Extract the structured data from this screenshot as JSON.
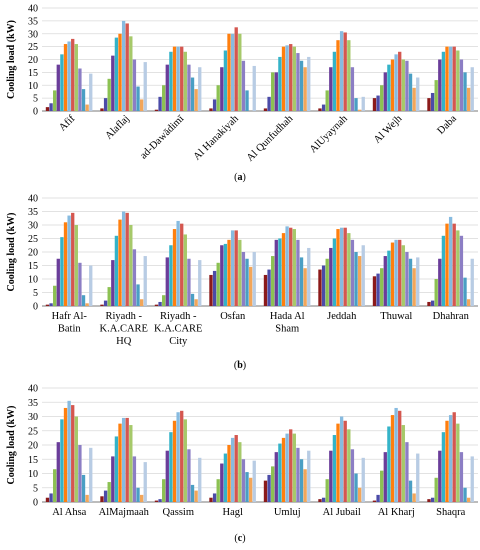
{
  "colors": [
    "#8b1a1a",
    "#4b4ba8",
    "#8cc152",
    "#6a3d9a",
    "#34b3c8",
    "#ff7f0e",
    "#87bbe0",
    "#d4574f",
    "#a6c96a",
    "#8c7ec4",
    "#4a9fc4",
    "#f2a65a",
    "#b8cce4"
  ],
  "chart_data": [
    {
      "type": "bar",
      "panel_label": "a",
      "ylabel": "Cooling load (kW)",
      "ylim": [
        0,
        40
      ],
      "yticks": [
        0,
        5,
        10,
        15,
        20,
        25,
        30,
        35,
        40
      ],
      "grid": true,
      "categories": [
        "Afif",
        "Alaflaj",
        "ad-Dawādimī",
        "Al Hanakiyah",
        "Al Qunfudhah",
        "AlUyaynah",
        "Al Wejh",
        "Daba"
      ],
      "series": [
        {
          "values": [
            1.5,
            1,
            0.5,
            1,
            1,
            1,
            5,
            5
          ]
        },
        {
          "values": [
            3,
            5,
            5.5,
            4.5,
            5.5,
            2.5,
            6,
            7
          ]
        },
        {
          "values": [
            8,
            12.5,
            10,
            10,
            15,
            8,
            10,
            12
          ]
        },
        {
          "values": [
            18,
            21.5,
            18,
            17,
            15,
            17,
            15,
            20
          ]
        },
        {
          "values": [
            22,
            28.5,
            23,
            23.5,
            21,
            23,
            18,
            23
          ]
        },
        {
          "values": [
            26,
            30,
            25,
            30,
            25,
            27.5,
            20,
            25
          ]
        },
        {
          "values": [
            27,
            35,
            25,
            30,
            25.5,
            31,
            22,
            25
          ]
        },
        {
          "values": [
            28,
            34,
            25,
            32.5,
            26,
            30.5,
            23,
            25
          ]
        },
        {
          "values": [
            26,
            29,
            23,
            30,
            25,
            27.5,
            20,
            23.5
          ]
        },
        {
          "values": [
            16.5,
            20,
            18,
            19.5,
            22.5,
            17,
            19.5,
            20
          ]
        },
        {
          "values": [
            8.5,
            9.5,
            13,
            8,
            19.5,
            5,
            14.5,
            15
          ]
        },
        {
          "values": [
            2.5,
            4.5,
            8.5,
            0,
            17,
            0.5,
            9,
            9
          ]
        },
        {
          "values": [
            14.5,
            19,
            17,
            17.5,
            21,
            5.5,
            13,
            17
          ]
        }
      ]
    },
    {
      "type": "bar",
      "panel_label": "b",
      "ylabel": "Cooling load (kW)",
      "ylim": [
        0,
        40
      ],
      "yticks": [
        0,
        5,
        10,
        15,
        20,
        25,
        30,
        35,
        40
      ],
      "grid": true,
      "categories": [
        "Hafr Al-\nBatin",
        "Riyadh -\nK.A.CARE\nHQ",
        "Riyadh -\nK.A.CARE\nCity",
        "Osfan",
        "Hada Al\nSham",
        "Jeddah",
        "Thuwal",
        "Dhahran"
      ],
      "series": [
        {
          "values": [
            0.5,
            0.5,
            0.5,
            11.5,
            11.5,
            13.5,
            11,
            1.5
          ]
        },
        {
          "values": [
            1,
            2,
            1.5,
            13,
            13.5,
            15,
            12,
            2
          ]
        },
        {
          "values": [
            7.5,
            7,
            4,
            16,
            18.5,
            17.5,
            14,
            10
          ]
        },
        {
          "values": [
            17.5,
            17,
            18,
            22.5,
            24.5,
            21.5,
            18.5,
            17.5
          ]
        },
        {
          "values": [
            25.5,
            26,
            22.5,
            23,
            25,
            25,
            20.5,
            26
          ]
        },
        {
          "values": [
            31,
            32,
            28.5,
            24.5,
            27,
            28.5,
            23.5,
            30.5
          ]
        },
        {
          "values": [
            33.5,
            35,
            31.5,
            28,
            29.5,
            29,
            24.5,
            33
          ]
        },
        {
          "values": [
            34.5,
            34.5,
            30.5,
            28,
            29,
            29,
            24.5,
            30.5
          ]
        },
        {
          "values": [
            30,
            30,
            26.5,
            24.5,
            28.5,
            27,
            22.5,
            28
          ]
        },
        {
          "values": [
            16,
            21,
            17.5,
            20,
            24.5,
            24.5,
            20,
            26
          ]
        },
        {
          "values": [
            4,
            8,
            4.5,
            17.5,
            18,
            20,
            17.5,
            10.5
          ]
        },
        {
          "values": [
            1,
            2.5,
            2.5,
            14.5,
            14,
            18.5,
            14,
            2.5
          ]
        },
        {
          "values": [
            15,
            18.5,
            17,
            20,
            21.5,
            22.5,
            18,
            17.5
          ]
        }
      ]
    },
    {
      "type": "bar",
      "panel_label": "c",
      "ylabel": "Cooling load (kW)",
      "ylim": [
        0,
        40
      ],
      "yticks": [
        0,
        5,
        10,
        15,
        20,
        25,
        30,
        35,
        40
      ],
      "grid": true,
      "categories": [
        "Al Ahsa",
        "AlMajmaah",
        "Qassim",
        "Hagl",
        "Umluj",
        "Al Jubail",
        "Al Kharj",
        "Shaqra"
      ],
      "series": [
        {
          "values": [
            1.5,
            2,
            0.5,
            1.5,
            7.5,
            1,
            0.5,
            1
          ]
        },
        {
          "values": [
            3,
            4,
            1,
            3,
            9.5,
            1.5,
            2.5,
            1.5
          ]
        },
        {
          "values": [
            11.5,
            7,
            8,
            8,
            12.5,
            8,
            11,
            8.5
          ]
        },
        {
          "values": [
            21,
            16,
            18,
            13.5,
            17.5,
            18,
            17.5,
            18
          ]
        },
        {
          "values": [
            29,
            23,
            24.5,
            17,
            20.5,
            23.5,
            26.5,
            24.5
          ]
        },
        {
          "values": [
            33,
            27.5,
            28.5,
            20,
            22.5,
            27.5,
            30.5,
            28.5
          ]
        },
        {
          "values": [
            35.5,
            29.5,
            31.5,
            22.5,
            24,
            30,
            33,
            30.5
          ]
        },
        {
          "values": [
            34,
            29.5,
            32,
            23.5,
            25.5,
            28.5,
            32,
            31.5
          ]
        },
        {
          "values": [
            30,
            27,
            29,
            21,
            24,
            25.5,
            27,
            27.5
          ]
        },
        {
          "values": [
            20,
            16,
            18.5,
            15,
            19,
            18.5,
            21,
            17.5
          ]
        },
        {
          "values": [
            9.5,
            5,
            6,
            10.5,
            15,
            10,
            7.5,
            5
          ]
        },
        {
          "values": [
            2.5,
            2.5,
            4,
            8.5,
            11.5,
            5,
            3,
            1.5
          ]
        },
        {
          "values": [
            19,
            14,
            15.5,
            14.5,
            18,
            15.5,
            17,
            16
          ]
        }
      ]
    }
  ]
}
